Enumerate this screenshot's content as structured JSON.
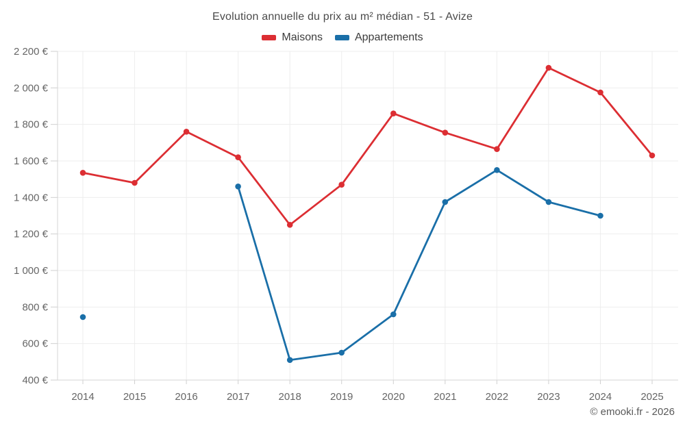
{
  "title": "Evolution annuelle du prix au m² médian - 51 - Avize",
  "watermark": "© emooki.fr - 2026",
  "chart_data": {
    "type": "line",
    "title": "Evolution annuelle du prix au m² médian - 51 - Avize",
    "x": [
      "2014",
      "2015",
      "2016",
      "2017",
      "2018",
      "2019",
      "2020",
      "2021",
      "2022",
      "2023",
      "2024",
      "2025"
    ],
    "series": [
      {
        "name": "Maisons",
        "color": "#dc2e33",
        "values": [
          1535,
          1480,
          1760,
          1620,
          1250,
          1470,
          1860,
          1755,
          1665,
          2110,
          1975,
          1630
        ]
      },
      {
        "name": "Appartements",
        "color": "#1a6fa8",
        "values": [
          745,
          null,
          null,
          1460,
          510,
          550,
          760,
          1375,
          1550,
          1375,
          1300,
          null
        ]
      }
    ],
    "ylabel_unit": "€",
    "ylim": [
      400,
      2200
    ],
    "ytick_step": 200,
    "grid": true,
    "legend_position": "top",
    "grid_color": "#ededed",
    "axis_color": "#d4d4d4",
    "tick_label_color": "#666666"
  }
}
